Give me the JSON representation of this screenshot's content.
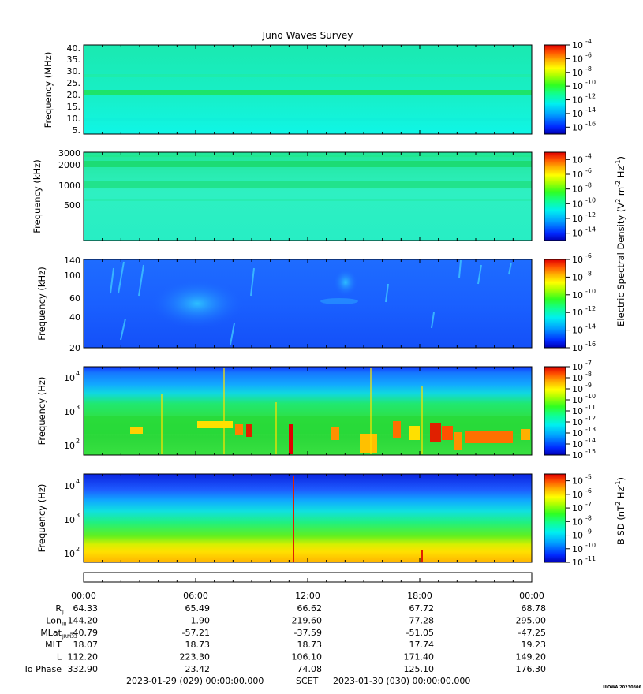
{
  "title": "Juno Waves Survey",
  "chart_data": [
    {
      "type": "heatmap",
      "panel": 1,
      "ylabel": "Frequency (MHz)",
      "yscale": "linear",
      "ylim": [
        4,
        41
      ],
      "yticks": [
        5,
        10,
        15,
        20,
        25,
        30,
        35,
        40
      ],
      "ytick_labels": [
        "5.",
        "10.",
        "15.",
        "20.",
        "25.",
        "30.",
        "35.",
        "40."
      ],
      "colorbar": {
        "scale": "log",
        "min_exp": -17,
        "max_exp": -4,
        "labels_exp": [
          -16,
          -14,
          -12,
          -10,
          -8,
          -6,
          -4
        ]
      },
      "bands": [
        {
          "freq": 21,
          "color": "#17e86a"
        },
        {
          "freq": 27,
          "color": "#1ff0a8"
        },
        {
          "freq": 9,
          "color": "#10f0d8"
        }
      ],
      "base_color": "#17f2c9"
    },
    {
      "type": "heatmap",
      "panel": 2,
      "ylabel": "Frequency (kHz)",
      "yscale": "log",
      "ylim": [
        140,
        3000
      ],
      "yticks": [
        500,
        1000,
        2000,
        3000
      ],
      "ytick_labels": [
        "500",
        "1000",
        "2000",
        "3000"
      ],
      "colorbar": {
        "scale": "log",
        "min_exp": -15,
        "max_exp": -3,
        "labels_exp": [
          -14,
          -12,
          -10,
          -8,
          -6,
          -4
        ]
      },
      "bands": [
        {
          "freq": 1950,
          "color": "#1fe07c"
        },
        {
          "freq": 1000,
          "color": "#22e48a"
        },
        {
          "freq": 2600,
          "color": "#1fe889"
        }
      ],
      "base_color": "#28eebd"
    },
    {
      "type": "heatmap",
      "panel": 3,
      "ylabel": "Frequency (kHz)",
      "yscale": "log",
      "ylim": [
        20,
        140
      ],
      "yticks": [
        20,
        40,
        60,
        100,
        140
      ],
      "ytick_labels": [
        "20",
        "40",
        "60",
        "100",
        "140"
      ],
      "colorbar": {
        "scale": "log",
        "min_exp": -16,
        "max_exp": -6,
        "labels_exp": [
          -16,
          -14,
          -12,
          -10,
          -8,
          -6
        ]
      },
      "base_color": "#1a62ff"
    },
    {
      "type": "heatmap",
      "panel": 4,
      "ylabel": "Frequency (Hz)",
      "yscale": "log",
      "ylim": [
        50,
        20000
      ],
      "yticks": [
        100,
        1000,
        10000
      ],
      "ytick_labels": [
        "10",
        "10",
        "10"
      ],
      "ytick_exps": [
        "2",
        "3",
        "4"
      ],
      "colorbar": {
        "scale": "log",
        "min_exp": -15,
        "max_exp": -7,
        "labels_exp": [
          -15,
          -14,
          -13,
          -12,
          -11,
          -10,
          -9,
          -8,
          -7
        ]
      },
      "base_color": "#24d84a"
    },
    {
      "type": "heatmap",
      "panel": 5,
      "ylabel": "Frequency (Hz)",
      "yscale": "log",
      "ylim": [
        50,
        20000
      ],
      "yticks": [
        100,
        1000,
        10000
      ],
      "ytick_labels": [
        "10",
        "10",
        "10"
      ],
      "ytick_exps": [
        "2",
        "3",
        "4"
      ],
      "colorbar": {
        "scale": "log",
        "min_exp": -11,
        "max_exp": -4.5,
        "labels_exp": [
          -11,
          -10,
          -9,
          -8,
          -7,
          -6,
          -5
        ]
      },
      "base_color": "#30d050"
    }
  ],
  "colorbar_label_electric": "Electric Spectral Density (V",
  "colorbar_label_magnetic": "B SD (nT",
  "tick_base": "10",
  "time_axis": {
    "labels": [
      "00:00",
      "06:00",
      "12:00",
      "18:00",
      "00:00"
    ],
    "rows": [
      {
        "name": "R",
        "sub": "J",
        "values": [
          "64.33",
          "65.49",
          "66.62",
          "67.72",
          "68.78"
        ]
      },
      {
        "name": "Lon",
        "sub": "III",
        "values": [
          "144.20",
          "1.90",
          "219.60",
          "77.28",
          "295.00"
        ]
      },
      {
        "name": "MLat",
        "sub": "JRM33",
        "values": [
          "-40.79",
          "-57.21",
          "-37.59",
          "-51.05",
          "-47.25"
        ]
      },
      {
        "name": "MLT",
        "sub": "",
        "values": [
          "18.07",
          "18.73",
          "18.73",
          "17.74",
          "19.23"
        ]
      },
      {
        "name": "L",
        "sub": "",
        "values": [
          "112.20",
          "223.30",
          "106.10",
          "171.40",
          "149.20"
        ]
      },
      {
        "name": "Io Phase",
        "sub": "",
        "values": [
          "332.90",
          "23.42",
          "74.08",
          "125.10",
          "176.30"
        ]
      }
    ],
    "start": "2023-01-29 (029) 00:00:00.000",
    "mid": "SCET",
    "end": "2023-01-30 (030) 00:00:00.000"
  },
  "footer_tag": "UIOWA 20230806",
  "colors": {
    "colormap": [
      "#0000b4",
      "#0028ff",
      "#00a0ff",
      "#00f0f0",
      "#10ff90",
      "#30ff20",
      "#b0ff00",
      "#ffff00",
      "#ffb000",
      "#ff5000",
      "#e00000"
    ]
  }
}
